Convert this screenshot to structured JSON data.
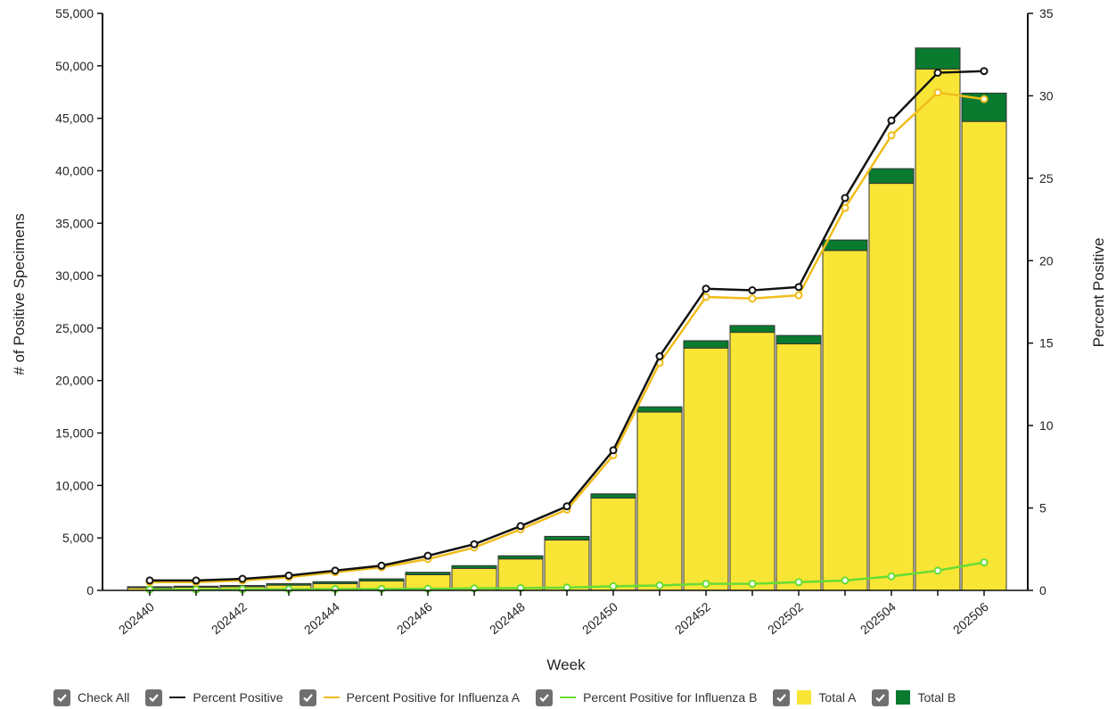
{
  "chart_data": {
    "type": "bar",
    "xlabel": "Week",
    "ylabel_left": "# of Positive Specimens",
    "ylabel_right": "Percent Positive",
    "ylim_left": [
      0,
      55000
    ],
    "ylim_right": [
      0,
      35
    ],
    "yticks_left": [
      "0",
      "5,000",
      "10,000",
      "15,000",
      "20,000",
      "25,000",
      "30,000",
      "35,000",
      "40,000",
      "45,000",
      "50,000",
      "55,000"
    ],
    "yticks_right": [
      "0",
      "5",
      "10",
      "15",
      "20",
      "25",
      "30",
      "35"
    ],
    "categories": [
      "202440",
      "202441",
      "202442",
      "202443",
      "202444",
      "202445",
      "202446",
      "202447",
      "202448",
      "202449",
      "202450",
      "202451",
      "202452",
      "202501",
      "202502",
      "202503",
      "202504",
      "202505",
      "202506"
    ],
    "xtick_labels": [
      "202440",
      "202442",
      "202444",
      "202446",
      "202448",
      "202450",
      "202452",
      "202502",
      "202504",
      "202506"
    ],
    "bar_series": [
      {
        "name": "Total A",
        "color": "#f9e535",
        "values": [
          250,
          300,
          350,
          500,
          650,
          900,
          1500,
          2100,
          3000,
          4800,
          8800,
          17000,
          23100,
          24600,
          23500,
          32400,
          38800,
          49700,
          44700
        ]
      },
      {
        "name": "Total B",
        "color": "#0a7a2f",
        "values": [
          100,
          100,
          120,
          150,
          180,
          200,
          230,
          260,
          300,
          350,
          400,
          500,
          700,
          650,
          800,
          1000,
          1400,
          2000,
          2700
        ]
      }
    ],
    "line_series": [
      {
        "name": "Percent Positive",
        "color": "#111111",
        "values": [
          0.6,
          0.6,
          0.7,
          0.9,
          1.2,
          1.5,
          2.1,
          2.8,
          3.9,
          5.1,
          8.5,
          14.2,
          18.3,
          18.2,
          18.4,
          23.8,
          28.5,
          31.4,
          31.5
        ]
      },
      {
        "name": "Percent Positive for Influenza A",
        "color": "#f0bd1b",
        "values": [
          0.5,
          0.5,
          0.6,
          0.8,
          1.1,
          1.4,
          1.9,
          2.6,
          3.7,
          4.9,
          8.2,
          13.8,
          17.8,
          17.7,
          17.9,
          23.2,
          27.6,
          30.2,
          29.8
        ]
      },
      {
        "name": "Percent Positive for Influenza B",
        "color": "#66dd33",
        "values": [
          0.05,
          0.05,
          0.06,
          0.07,
          0.08,
          0.09,
          0.1,
          0.12,
          0.14,
          0.17,
          0.25,
          0.3,
          0.4,
          0.4,
          0.5,
          0.6,
          0.85,
          1.2,
          1.7
        ]
      }
    ]
  },
  "legend": {
    "check_all": "Check All",
    "items": [
      {
        "label": "Percent Positive",
        "color": "#111111",
        "kind": "line"
      },
      {
        "label": "Percent Positive for Influenza A",
        "color": "#f0bd1b",
        "kind": "line"
      },
      {
        "label": "Percent Positive for Influenza B",
        "color": "#66dd33",
        "kind": "line"
      },
      {
        "label": "Total A",
        "color": "#f9e535",
        "kind": "box"
      },
      {
        "label": "Total B",
        "color": "#0a7a2f",
        "kind": "box"
      }
    ]
  }
}
